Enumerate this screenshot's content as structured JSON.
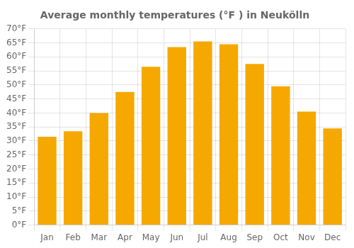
{
  "chart_data": {
    "type": "bar",
    "title": "Average monthly temperatures (°F ) in Neukölln",
    "categories": [
      "Jan",
      "Feb",
      "Mar",
      "Apr",
      "May",
      "Jun",
      "Jul",
      "Aug",
      "Sep",
      "Oct",
      "Nov",
      "Dec"
    ],
    "values": [
      31.5,
      33.5,
      40.0,
      47.5,
      56.5,
      63.5,
      65.5,
      64.5,
      57.5,
      49.5,
      40.5,
      34.5
    ],
    "color": "#F5A800",
    "ylim": [
      0,
      70
    ],
    "yticks": [
      {
        "value": 0,
        "label": "0°F"
      },
      {
        "value": 5,
        "label": "5°F"
      },
      {
        "value": 10,
        "label": "10°F"
      },
      {
        "value": 15,
        "label": "15°F"
      },
      {
        "value": 20,
        "label": "20°F"
      },
      {
        "value": 25,
        "label": "25°F"
      },
      {
        "value": 30,
        "label": "30°F"
      },
      {
        "value": 35,
        "label": "35°F"
      },
      {
        "value": 40,
        "label": "40°F"
      },
      {
        "value": 45,
        "label": "45°F"
      },
      {
        "value": 50,
        "label": "50°F"
      },
      {
        "value": 55,
        "label": "55°F"
      },
      {
        "value": 60,
        "label": "60°F"
      },
      {
        "value": 65,
        "label": "65°F"
      },
      {
        "value": 70,
        "label": "70°F"
      }
    ],
    "grid": true
  }
}
